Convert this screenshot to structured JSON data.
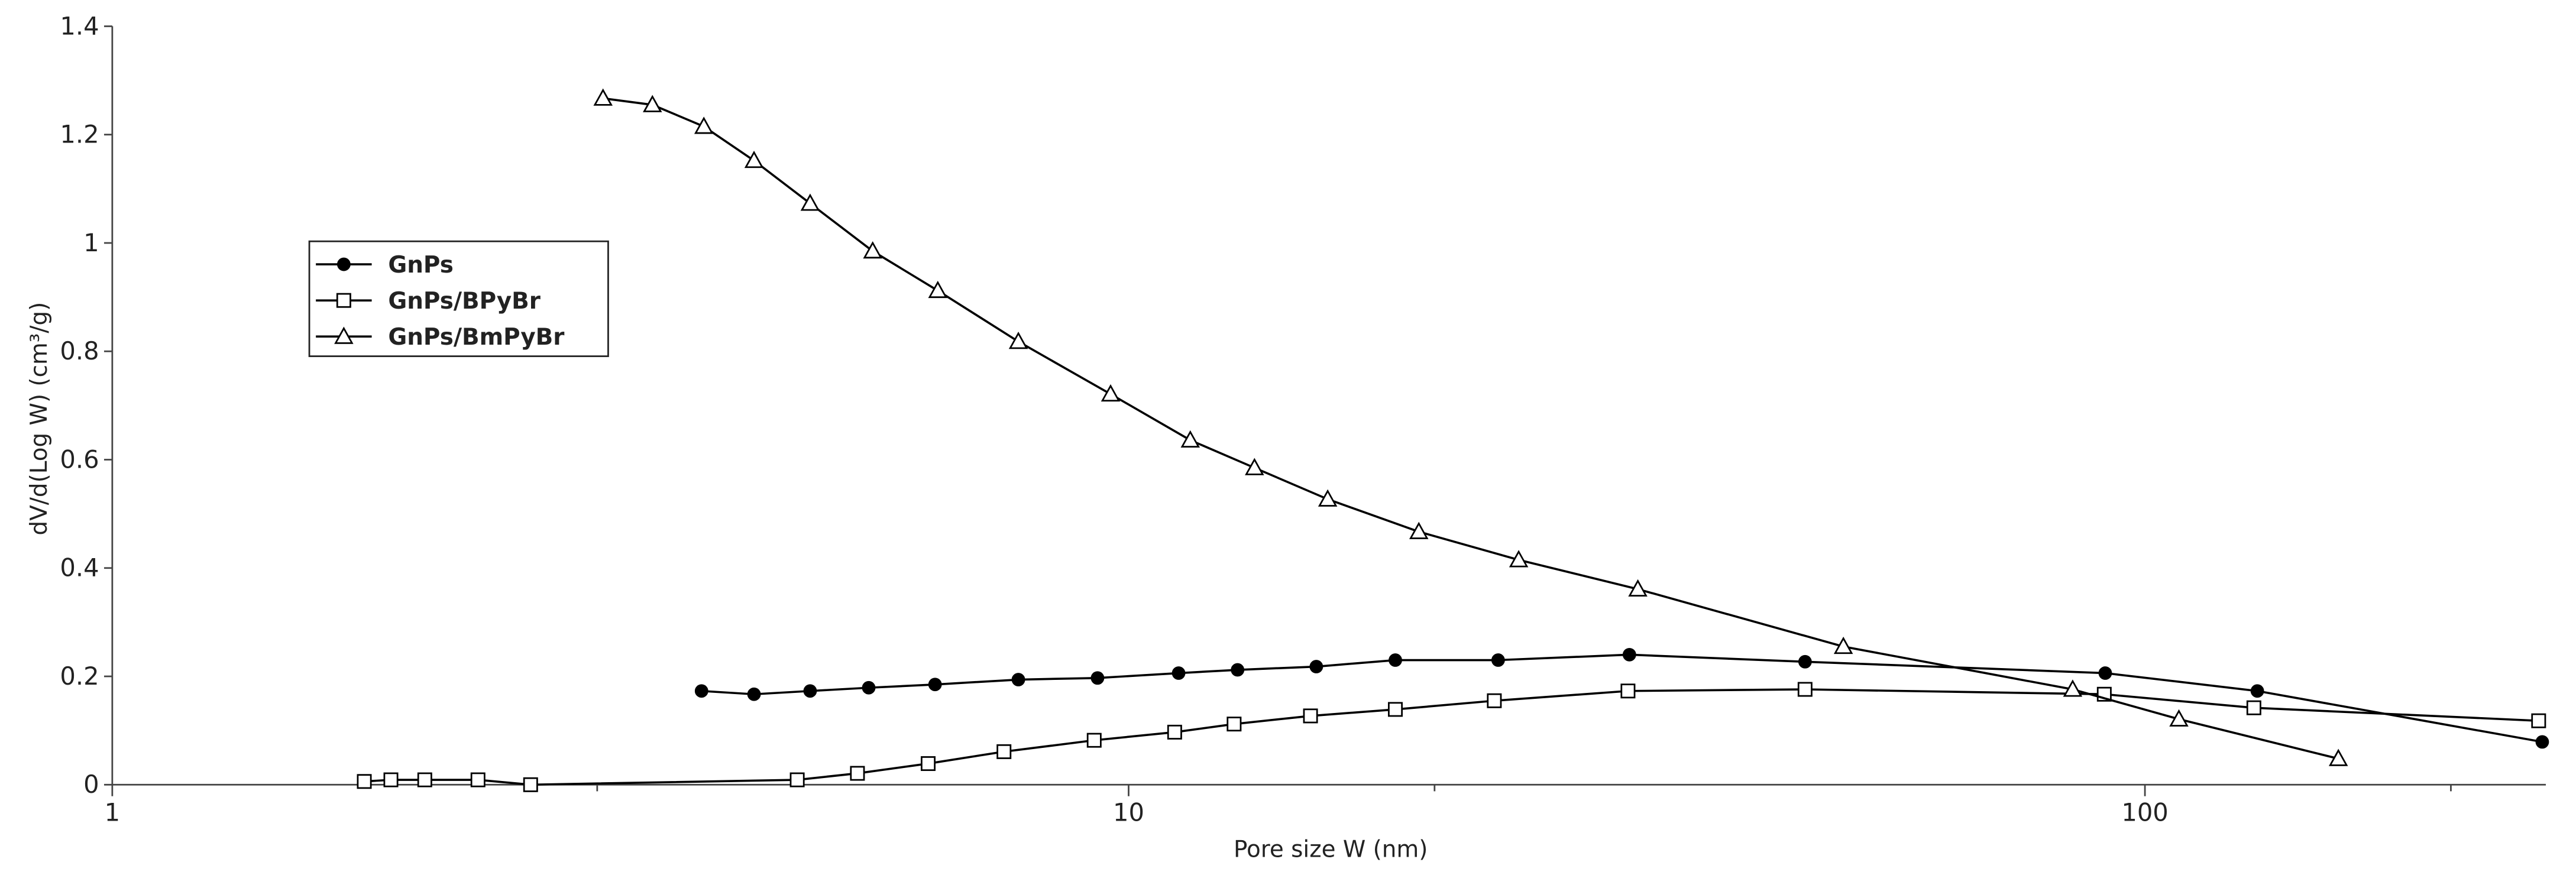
{
  "chart_data": {
    "type": "line",
    "x_label": "Pore size W (nm)",
    "y_label": "dV/d(Log W) (cm³/g)",
    "x_log": true,
    "xlim": [
      1,
      248
    ],
    "xticks": [
      1,
      10,
      100
    ],
    "xminorticks": [
      3,
      20,
      200
    ],
    "ylim": [
      0,
      1.4
    ],
    "yticks": [
      0,
      0.2,
      0.4,
      0.6,
      0.8,
      1,
      1.2,
      1.4
    ],
    "legend": "upper left",
    "series": [
      {
        "name": "GnPs",
        "color": "#000000",
        "marker": "filled-circle",
        "x": [
          3.8,
          4.28,
          4.86,
          5.55,
          6.45,
          7.79,
          9.32,
          11.2,
          12.8,
          15.3,
          18.3,
          23.1,
          31.1,
          46.3,
          91.4,
          129,
          246
        ],
        "values": [
          0.173,
          0.167,
          0.173,
          0.179,
          0.185,
          0.194,
          0.197,
          0.206,
          0.212,
          0.218,
          0.23,
          0.23,
          0.24,
          0.227,
          0.206,
          0.173,
          0.079
        ]
      },
      {
        "name": "GnPs/BPyBr",
        "color": "#000000",
        "marker": "open-square",
        "x": [
          1.77,
          1.88,
          2.03,
          2.29,
          2.58,
          4.72,
          5.41,
          6.35,
          7.54,
          9.25,
          11.1,
          12.7,
          15.1,
          18.3,
          22.9,
          31.0,
          46.3,
          91.2,
          128,
          244
        ],
        "values": [
          0.006,
          0.009,
          0.009,
          0.009,
          0,
          0.009,
          0.021,
          0.039,
          0.061,
          0.082,
          0.097,
          0.112,
          0.127,
          0.139,
          0.155,
          0.173,
          0.176,
          0.167,
          0.142,
          0.118
        ]
      },
      {
        "name": "GnPs/BmPyBr",
        "color": "#000000",
        "marker": "open-triangle",
        "x": [
          3.04,
          3.4,
          3.82,
          4.28,
          4.86,
          5.6,
          6.49,
          7.79,
          9.6,
          11.5,
          13.3,
          15.7,
          19.3,
          24.2,
          31.7,
          50.5,
          84.9,
          108,
          155
        ],
        "values": [
          1.267,
          1.255,
          1.215,
          1.152,
          1.073,
          0.985,
          0.912,
          0.818,
          0.721,
          0.636,
          0.585,
          0.527,
          0.467,
          0.415,
          0.361,
          0.255,
          0.176,
          0.121,
          0.048
        ]
      }
    ]
  }
}
